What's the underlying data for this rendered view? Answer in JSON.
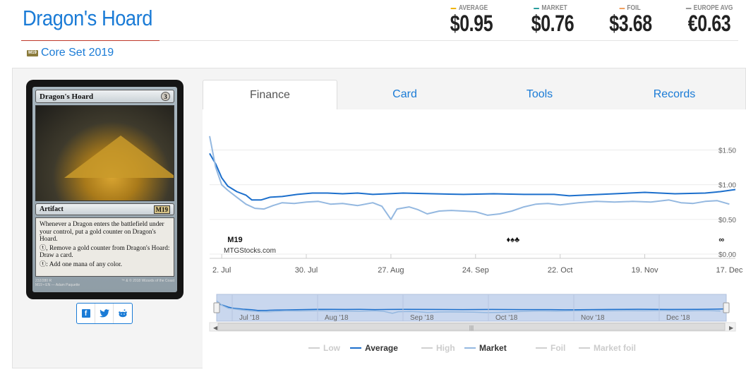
{
  "card": {
    "title": "Dragon's Hoard",
    "set_name": "Core Set 2019",
    "set_icon_label": "M19",
    "image": {
      "name": "Dragon's Hoard",
      "cost": "3",
      "type_line": "Artifact",
      "set_symbol": "M19",
      "rules_text": [
        "Whenever a Dragon enters the battlefield under your control, put a gold counter on Dragon's Hoard.",
        "ⓣ, Remove a gold counter from Dragon's Hoard: Draw a card.",
        "ⓣ: Add one mana of any color."
      ],
      "collector": "232/280 R",
      "set_line": "M19 • EN — Adam Paquette",
      "copyright": "™ & © 2018 Wizards of the Coast"
    }
  },
  "prices": [
    {
      "label": "AVERAGE",
      "value": "$0.95",
      "color": "#f0b400"
    },
    {
      "label": "MARKET",
      "value": "$0.76",
      "color": "#2a9d9d"
    },
    {
      "label": "FOIL",
      "value": "$3.68",
      "color": "#f0a060"
    },
    {
      "label": "EUROPE AVG",
      "value": "€0.63",
      "color": "#999999"
    }
  ],
  "tabs": [
    {
      "label": "Finance",
      "active": true
    },
    {
      "label": "Card",
      "active": false
    },
    {
      "label": "Tools",
      "active": false
    },
    {
      "label": "Records",
      "active": false
    }
  ],
  "share": [
    "facebook-icon",
    "twitter-icon",
    "reddit-icon"
  ],
  "chart_data": {
    "type": "line",
    "watermark": "MTGStocks.com",
    "y_ticks": [
      "$1.50",
      "$1.00",
      "$0.50",
      "$0.00"
    ],
    "ylim": [
      0,
      1.8
    ],
    "x_ticks": [
      "2. Jul",
      "30. Jul",
      "27. Aug",
      "24. Sep",
      "22. Oct",
      "19. Nov",
      "17. Dec"
    ],
    "x_tick_days": [
      0,
      28,
      56,
      84,
      112,
      140,
      168
    ],
    "xlim": [
      -4,
      170
    ],
    "series": [
      {
        "name": "Average",
        "color": "#1c6fcc",
        "width": 2,
        "points": [
          [
            -4,
            1.45
          ],
          [
            -2,
            1.3
          ],
          [
            0,
            1.1
          ],
          [
            2,
            0.98
          ],
          [
            5,
            0.9
          ],
          [
            8,
            0.85
          ],
          [
            10,
            0.78
          ],
          [
            13,
            0.78
          ],
          [
            16,
            0.82
          ],
          [
            20,
            0.83
          ],
          [
            25,
            0.86
          ],
          [
            30,
            0.88
          ],
          [
            35,
            0.88
          ],
          [
            40,
            0.87
          ],
          [
            45,
            0.88
          ],
          [
            50,
            0.86
          ],
          [
            55,
            0.87
          ],
          [
            60,
            0.88
          ],
          [
            70,
            0.87
          ],
          [
            80,
            0.86
          ],
          [
            90,
            0.87
          ],
          [
            100,
            0.86
          ],
          [
            110,
            0.86
          ],
          [
            115,
            0.84
          ],
          [
            120,
            0.85
          ],
          [
            130,
            0.87
          ],
          [
            140,
            0.89
          ],
          [
            150,
            0.87
          ],
          [
            160,
            0.88
          ],
          [
            165,
            0.9
          ],
          [
            170,
            0.93
          ]
        ]
      },
      {
        "name": "Market",
        "color": "#94b8e0",
        "width": 2,
        "points": [
          [
            -4,
            1.7
          ],
          [
            -2,
            1.25
          ],
          [
            0,
            1.0
          ],
          [
            2,
            0.92
          ],
          [
            5,
            0.82
          ],
          [
            8,
            0.72
          ],
          [
            11,
            0.66
          ],
          [
            14,
            0.65
          ],
          [
            17,
            0.7
          ],
          [
            20,
            0.74
          ],
          [
            24,
            0.73
          ],
          [
            28,
            0.75
          ],
          [
            32,
            0.76
          ],
          [
            36,
            0.72
          ],
          [
            40,
            0.73
          ],
          [
            45,
            0.7
          ],
          [
            50,
            0.74
          ],
          [
            53,
            0.69
          ],
          [
            56,
            0.5
          ],
          [
            58,
            0.65
          ],
          [
            62,
            0.68
          ],
          [
            65,
            0.64
          ],
          [
            68,
            0.58
          ],
          [
            72,
            0.62
          ],
          [
            76,
            0.63
          ],
          [
            80,
            0.62
          ],
          [
            84,
            0.61
          ],
          [
            88,
            0.56
          ],
          [
            92,
            0.58
          ],
          [
            96,
            0.62
          ],
          [
            100,
            0.68
          ],
          [
            104,
            0.72
          ],
          [
            108,
            0.73
          ],
          [
            112,
            0.71
          ],
          [
            118,
            0.74
          ],
          [
            124,
            0.76
          ],
          [
            130,
            0.75
          ],
          [
            136,
            0.76
          ],
          [
            142,
            0.75
          ],
          [
            148,
            0.78
          ],
          [
            152,
            0.74
          ],
          [
            156,
            0.73
          ],
          [
            160,
            0.76
          ],
          [
            164,
            0.77
          ],
          [
            168,
            0.72
          ]
        ]
      }
    ],
    "markers": [
      {
        "day": 3,
        "label": "M19"
      },
      {
        "day": 95,
        "label": "♦♠♣"
      },
      {
        "day": 164,
        "label": "∞"
      }
    ],
    "navigator_labels": [
      "Jul '18",
      "Aug '18",
      "Sep '18",
      "Oct '18",
      "Nov '18",
      "Dec '18"
    ],
    "legend": [
      {
        "name": "Low",
        "color": "#cccccc",
        "active": false
      },
      {
        "name": "Average",
        "color": "#1c6fcc",
        "active": true
      },
      {
        "name": "High",
        "color": "#cccccc",
        "active": false
      },
      {
        "name": "Market",
        "color": "#94b8e0",
        "active": true
      },
      {
        "name": "Foil",
        "color": "#cccccc",
        "active": false
      },
      {
        "name": "Market foil",
        "color": "#cccccc",
        "active": false
      }
    ]
  }
}
